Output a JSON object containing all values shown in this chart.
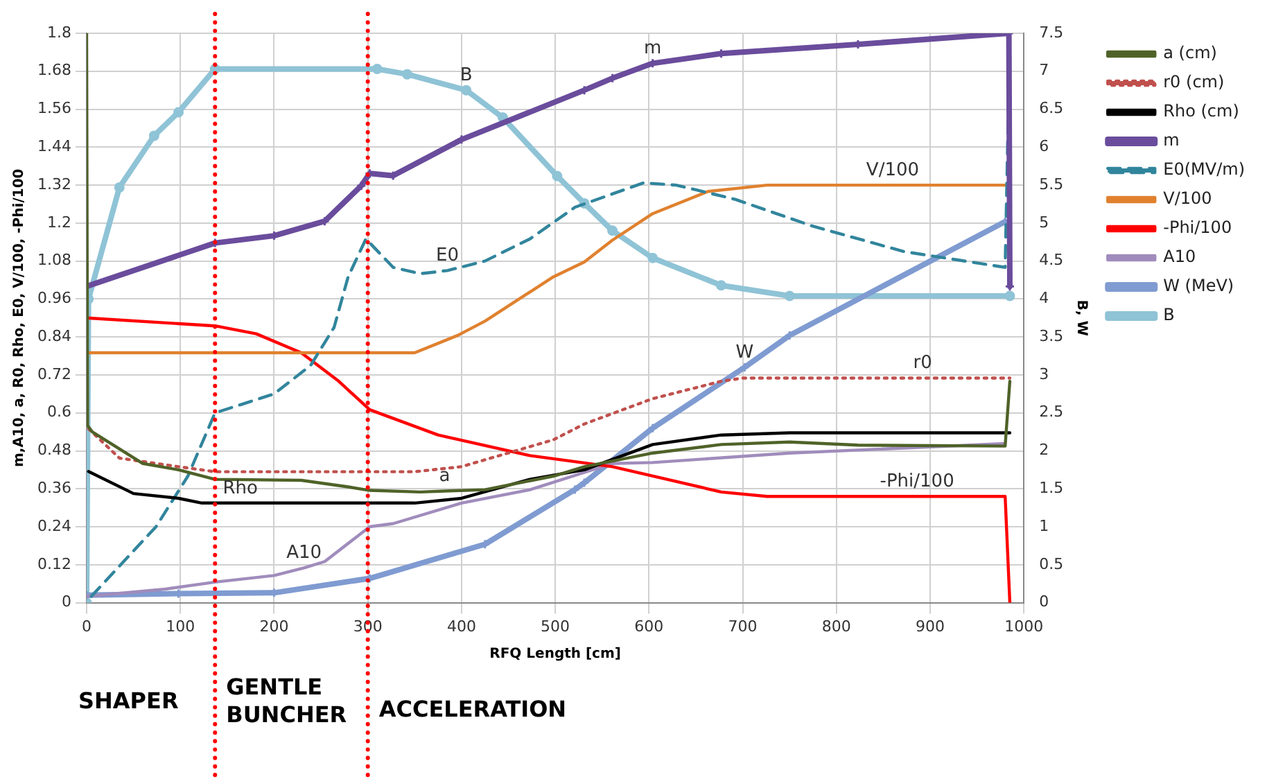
{
  "chart_data": {
    "type": "line",
    "xlabel": "RFQ Length [cm]",
    "ylabel": "m,A10, a, R0, Rho, E0, V/100, -Phi/100",
    "y2label": "B, W",
    "xlim": [
      0,
      1000
    ],
    "xticks": [
      0,
      100,
      200,
      300,
      400,
      500,
      600,
      700,
      800,
      900,
      1000
    ],
    "ylim": [
      0,
      1.8
    ],
    "yticks": [
      0,
      0.12,
      0.24,
      0.36,
      0.48,
      0.6,
      0.72,
      0.84,
      0.96,
      1.08,
      1.2,
      1.32,
      1.44,
      1.56,
      1.68,
      1.8
    ],
    "y2lim": [
      0,
      7.5
    ],
    "y2ticks": [
      0,
      0.5,
      1,
      1.5,
      2,
      2.5,
      3,
      3.5,
      4,
      4.5,
      5,
      5.5,
      6,
      6.5,
      7,
      7.5
    ],
    "grid": true,
    "legend": "right",
    "series": [
      {
        "name": "a (cm)",
        "color": "#4f6228",
        "marker": "none",
        "line_style": "solid",
        "x": [
          0,
          1,
          6,
          60,
          98,
          137,
          229,
          279,
          302,
          356,
          382,
          425,
          498,
          531,
          604,
          677,
          750,
          823,
          980,
          985
        ],
        "values": [
          1.8,
          0.56,
          0.54,
          0.44,
          0.42,
          0.39,
          0.387,
          0.366,
          0.355,
          0.35,
          0.353,
          0.357,
          0.4,
          0.43,
          0.473,
          0.5,
          0.508,
          0.498,
          0.495,
          0.7
        ]
      },
      {
        "name": "r0 (cm)",
        "color": "#c0504d",
        "marker": "none",
        "line_style": "dotted",
        "x": [
          2,
          35,
          98,
          137,
          350,
          400,
          498,
          531,
          604,
          677,
          700,
          892,
          985
        ],
        "values": [
          0.55,
          0.457,
          0.43,
          0.414,
          0.414,
          0.43,
          0.515,
          0.565,
          0.645,
          0.7,
          0.71,
          0.71,
          0.71
        ]
      },
      {
        "name": "Rho (cm)",
        "color": "#000000",
        "marker": "none",
        "line_style": "solid",
        "x": [
          2,
          50,
          98,
          123,
          164,
          350,
          400,
          473,
          531,
          604,
          677,
          750,
          985
        ],
        "values": [
          0.415,
          0.345,
          0.33,
          0.315,
          0.315,
          0.315,
          0.33,
          0.39,
          0.42,
          0.5,
          0.53,
          0.537,
          0.537
        ]
      },
      {
        "name": "m",
        "color": "#6a4c9c",
        "marker": "cross",
        "line_style": "solid",
        "x": [
          0,
          137,
          200,
          254,
          293,
          302,
          327,
          400,
          531,
          561,
          604,
          677,
          823,
          984,
          985
        ],
        "values": [
          1.0,
          1.137,
          1.16,
          1.206,
          1.318,
          1.357,
          1.35,
          1.464,
          1.62,
          1.658,
          1.705,
          1.736,
          1.765,
          1.8,
          1.0
        ]
      },
      {
        "name": "E0(MV/m)",
        "color": "#31859c",
        "marker": "none",
        "line_style": "dashed",
        "x": [
          5,
          74,
          108,
          137,
          200,
          239,
          264,
          279,
          298,
          327,
          356,
          385,
          425,
          473,
          521,
          594,
          629,
          692,
          775,
          872,
          980,
          985
        ],
        "values": [
          0.02,
          0.24,
          0.4,
          0.6,
          0.66,
          0.75,
          0.87,
          1.03,
          1.15,
          1.06,
          1.04,
          1.05,
          1.08,
          1.15,
          1.25,
          1.327,
          1.32,
          1.275,
          1.19,
          1.11,
          1.06,
          1.8
        ]
      },
      {
        "name": "V/100",
        "color": "#e0812f",
        "marker": "none",
        "line_style": "solid",
        "x": [
          0,
          350,
          396,
          425,
          498,
          531,
          561,
          604,
          663,
          726,
          860,
          985
        ],
        "values": [
          0.79,
          0.79,
          0.845,
          0.89,
          1.03,
          1.077,
          1.146,
          1.23,
          1.3,
          1.32,
          1.32,
          1.32
        ]
      },
      {
        "name": "-Phi/100",
        "color": "#ff0000",
        "marker": "none",
        "line_style": "solid",
        "x": [
          0,
          137,
          181,
          229,
          269,
          302,
          375,
          473,
          561,
          677,
          726,
          886,
          980,
          985
        ],
        "values": [
          0.9,
          0.875,
          0.85,
          0.79,
          0.7,
          0.61,
          0.53,
          0.465,
          0.43,
          0.35,
          0.336,
          0.336,
          0.336,
          0
        ]
      },
      {
        "name": "A10",
        "color": "#a08cbc",
        "marker": "none",
        "line_style": "solid",
        "x": [
          0,
          84,
          137,
          200,
          232,
          254,
          302,
          327,
          400,
          473,
          561,
          604,
          750,
          980
        ],
        "values": [
          0.02,
          0.043,
          0.065,
          0.086,
          0.11,
          0.13,
          0.24,
          0.25,
          0.315,
          0.357,
          0.44,
          0.443,
          0.473,
          0.503
        ]
      },
      {
        "name": "W (MeV)",
        "color": "#7f9bd1",
        "marker": "cross",
        "line_style": "solid",
        "axis": "y2",
        "x": [
          0,
          98,
          200,
          302,
          425,
          521,
          531,
          604,
          702,
          750,
          980
        ],
        "values": [
          0.1,
          0.12,
          0.13,
          0.32,
          0.77,
          1.49,
          1.58,
          2.3,
          3.1,
          3.52,
          5.02
        ]
      },
      {
        "name": "B",
        "color": "#8fc3d6",
        "marker": "circle",
        "line_style": "solid",
        "axis": "y2",
        "x": [
          0,
          2,
          35,
          72,
          98,
          137,
          310,
          342,
          405,
          444,
          502,
          531,
          561,
          604,
          677,
          750,
          985
        ],
        "values": [
          0,
          4,
          5.47,
          6.15,
          6.46,
          7.03,
          7.03,
          6.96,
          6.75,
          6.39,
          5.62,
          5.26,
          4.9,
          4.54,
          4.18,
          4.04,
          4.04
        ]
      }
    ],
    "ref_lines": [
      {
        "axis": "x",
        "value": 137,
        "color": "#ff0000",
        "line_style": "dotted"
      },
      {
        "axis": "x",
        "value": 300,
        "color": "#ff0000",
        "line_style": "dotted"
      }
    ],
    "annotations": [
      {
        "text": "m",
        "x": 604,
        "y": 1.705
      },
      {
        "text": "B",
        "x": 405,
        "y": 1.62
      },
      {
        "text": "V/100",
        "x": 860,
        "y": 1.32
      },
      {
        "text": "E0",
        "x": 385,
        "y": 1.05
      },
      {
        "text": "W",
        "x": 702,
        "y": 0.744
      },
      {
        "text": "r0",
        "x": 892,
        "y": 0.71
      },
      {
        "text": "Rho",
        "x": 164,
        "y": 0.315
      },
      {
        "text": "a",
        "x": 382,
        "y": 0.353
      },
      {
        "text": "A10",
        "x": 232,
        "y": 0.11
      },
      {
        "text": "-Phi/100",
        "x": 886,
        "y": 0.336
      },
      "SHAPER",
      "GENTLE BUNCHER",
      "ACCELERATION"
    ]
  }
}
